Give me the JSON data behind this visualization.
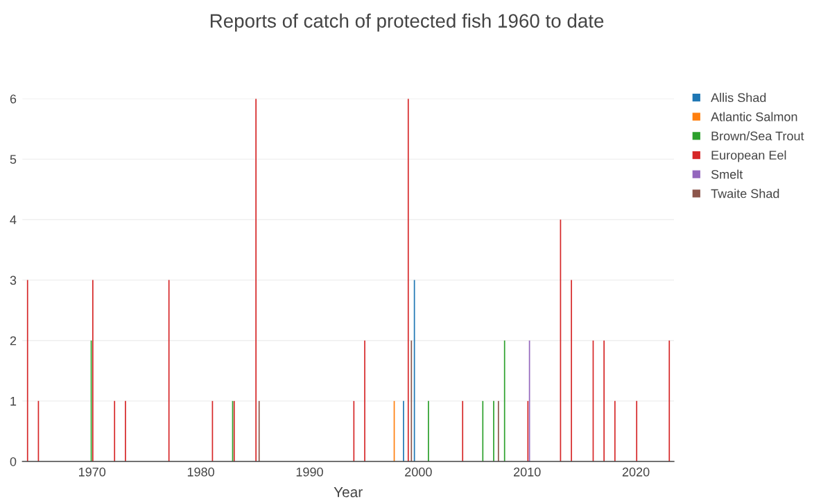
{
  "chart_data": {
    "type": "bar",
    "title": "Reports of catch of protected fish 1960 to date",
    "xlabel": "Year",
    "series": [
      {
        "name": "Allis Shad",
        "color": "#1f77b4",
        "x": [
          1999,
          2000
        ],
        "values": [
          1,
          3
        ]
      },
      {
        "name": "Atlantic Salmon",
        "color": "#ff7f0e",
        "x": [
          1998
        ],
        "values": [
          1
        ]
      },
      {
        "name": "Brown/Sea Trout",
        "color": "#2ca02c",
        "x": [
          1970,
          1983,
          2001,
          2006,
          2007,
          2008
        ],
        "values": [
          2,
          1,
          1,
          1,
          1,
          2
        ]
      },
      {
        "name": "European Eel",
        "color": "#d62728",
        "x": [
          1964,
          1965,
          1970,
          1972,
          1973,
          1977,
          1981,
          1983,
          1985,
          1994,
          1995,
          1999,
          2004,
          2010,
          2013,
          2014,
          2016,
          2017,
          2018,
          2020,
          2023
        ],
        "values": [
          3,
          1,
          3,
          1,
          1,
          3,
          1,
          1,
          6,
          1,
          2,
          6,
          1,
          1,
          4,
          3,
          2,
          2,
          1,
          1,
          2
        ]
      },
      {
        "name": "Smelt",
        "color": "#9467bd",
        "x": [
          2010
        ],
        "values": [
          2
        ]
      },
      {
        "name": "Twaite Shad",
        "color": "#8c564b",
        "x": [
          1985,
          1999,
          2007
        ],
        "values": [
          1,
          2,
          1
        ]
      }
    ],
    "xlim": [
      1963.6,
      2023.5
    ],
    "xticks": [
      1970,
      1980,
      1990,
      2000,
      2010,
      2020
    ],
    "ylim": [
      0,
      6
    ],
    "yticks": [
      0,
      1,
      2,
      3,
      4,
      5,
      6
    ],
    "grid": "y",
    "legend": "top right"
  }
}
